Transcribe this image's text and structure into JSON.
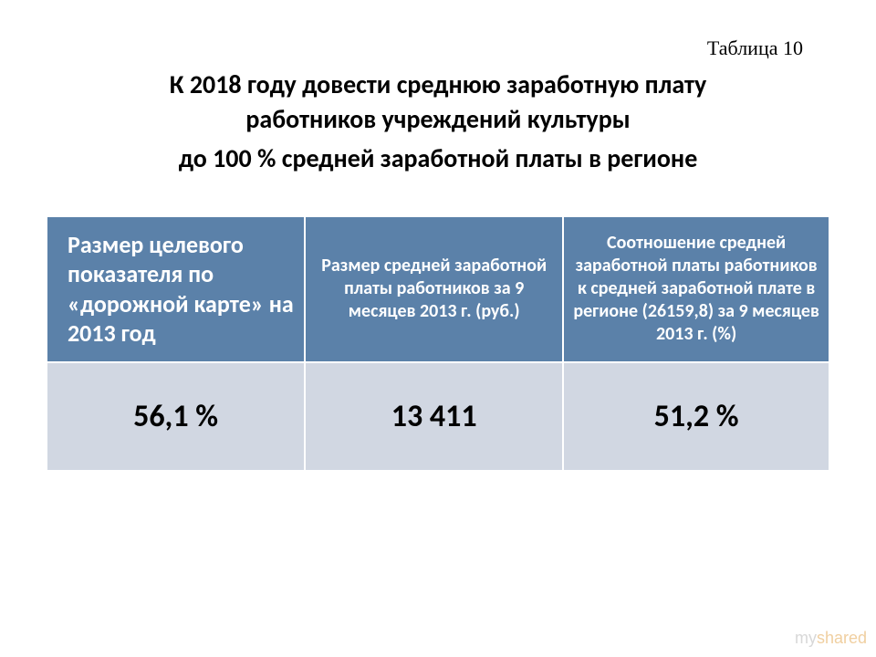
{
  "tableNumber": "Таблица 10",
  "title": {
    "line1": "К 2018 году довести среднюю заработную плату",
    "line2": "работников учреждений культуры",
    "line3": "до 100 % средней заработной платы в регионе"
  },
  "table": {
    "type": "table",
    "header_bg": "#5b81a9",
    "header_fg": "#ffffff",
    "data_bg": "#d1d7e2",
    "data_fg": "#000000",
    "border_color": "#ffffff",
    "columns": [
      {
        "label": "Размер целевого показателя по «дорожной карте» на 2013 год",
        "fontsize": 26,
        "align": "left",
        "width_pct": 33
      },
      {
        "label": "Размер средней заработной платы работников\nза 9 месяцев  2013 г. (руб.)",
        "fontsize": 20,
        "align": "center",
        "width_pct": 33
      },
      {
        "label": "Соотношение средней заработной платы работников к средней заработной плате в регионе (26159,8)\nза 9 месяцев 2013 г. (%)",
        "fontsize": 20,
        "align": "center",
        "width_pct": 34
      }
    ],
    "rows": [
      [
        "56,1 %",
        "13 411",
        "51,2 %"
      ]
    ],
    "data_fontsize": 34,
    "data_fontweight": "bold"
  },
  "watermark": {
    "part1": "my",
    "part2": "shared"
  }
}
